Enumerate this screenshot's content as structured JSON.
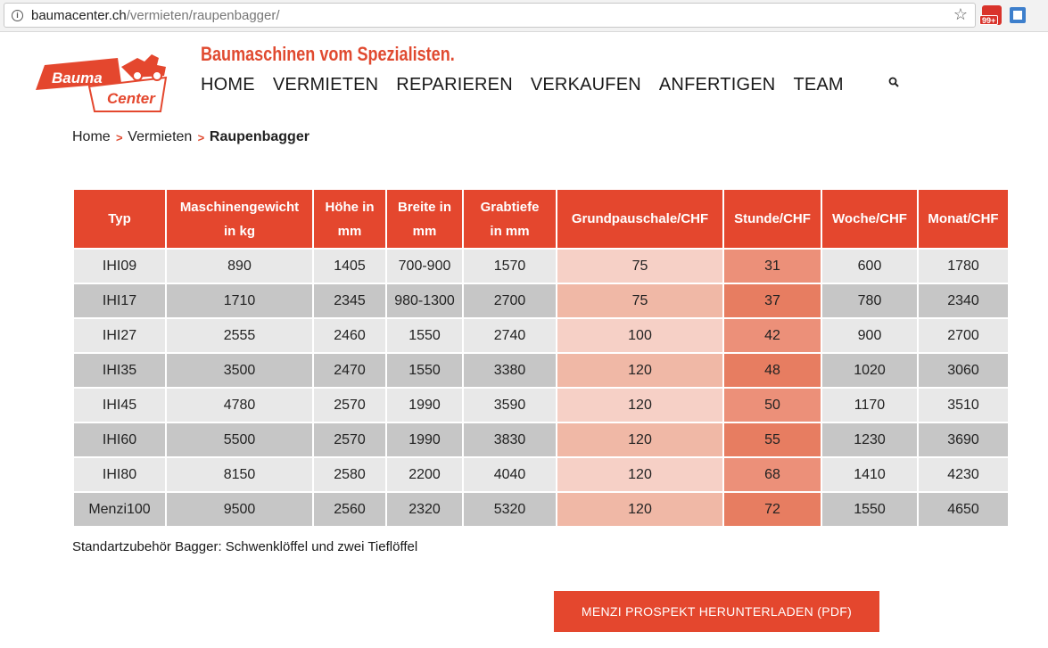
{
  "browser": {
    "url_domain": "baumacenter.ch",
    "url_path": "/vermieten/raupenbagger/",
    "ext_badge": "99+"
  },
  "header": {
    "logo_text_top": "Bauma",
    "logo_text_bottom": "Center",
    "tagline": "Baumaschinen vom Spezialisten.",
    "nav": [
      "HOME",
      "VERMIETEN",
      "REPARIEREN",
      "VERKAUFEN",
      "ANFERTIGEN",
      "TEAM"
    ]
  },
  "breadcrumb": {
    "home": "Home",
    "level2": "Vermieten",
    "current": "Raupenbagger",
    "separator": ">"
  },
  "table": {
    "headers": [
      [
        "Typ"
      ],
      [
        "Maschinengewicht",
        "in kg"
      ],
      [
        "Höhe in",
        "mm"
      ],
      [
        "Breite in",
        "mm"
      ],
      [
        "Grabtiefe",
        "in mm"
      ],
      [
        "Grundpauschale/CHF"
      ],
      [
        "Stunde/CHF"
      ],
      [
        "Woche/CHF"
      ],
      [
        "Monat/CHF"
      ]
    ],
    "rows": [
      [
        "IHI09",
        "890",
        "1405",
        "700-900",
        "1570",
        "75",
        "31",
        "600",
        "1780"
      ],
      [
        "IHI17",
        "1710",
        "2345",
        "980-1300",
        "2700",
        "75",
        "37",
        "780",
        "2340"
      ],
      [
        "IHI27",
        "2555",
        "2460",
        "1550",
        "2740",
        "100",
        "42",
        "900",
        "2700"
      ],
      [
        "IHI35",
        "3500",
        "2470",
        "1550",
        "3380",
        "120",
        "48",
        "1020",
        "3060"
      ],
      [
        "IHI45",
        "4780",
        "2570",
        "1990",
        "3590",
        "120",
        "50",
        "1170",
        "3510"
      ],
      [
        "IHI60",
        "5500",
        "2570",
        "1990",
        "3830",
        "120",
        "55",
        "1230",
        "3690"
      ],
      [
        "IHI80",
        "8150",
        "2580",
        "2200",
        "4040",
        "120",
        "68",
        "1410",
        "4230"
      ],
      [
        "Menzi100",
        "9500",
        "2560",
        "2320",
        "5320",
        "120",
        "72",
        "1550",
        "4650"
      ]
    ]
  },
  "note": "Standartzubehör Bagger: Schwenklöffel und zwei Tieflöffel",
  "download_label": "MENZI PROSPEKT HERUNTERLADEN (PDF)",
  "colors": {
    "brand_red": "#e4472e",
    "row_light": "#e8e8e8",
    "row_dark": "#c6c6c6"
  }
}
